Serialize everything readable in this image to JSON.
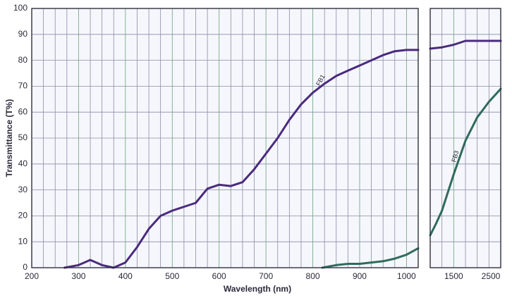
{
  "chart_data": [
    {
      "type": "line",
      "xlabel": "Wavelength (nm)",
      "ylabel": "Transmittance (T%)",
      "xlim": [
        200,
        1025
      ],
      "xticks": [
        200,
        300,
        400,
        500,
        600,
        700,
        800,
        900,
        1000
      ],
      "xgrid": [
        225,
        250,
        275,
        325,
        350,
        375,
        425,
        450,
        475,
        525,
        550,
        575,
        625,
        650,
        675,
        725,
        750,
        775,
        825,
        850,
        875,
        925,
        950,
        975
      ],
      "ylim": [
        0,
        100
      ],
      "yticks": [
        0,
        10,
        20,
        30,
        40,
        50,
        60,
        70,
        80,
        90,
        100
      ],
      "grid": true,
      "series": [
        {
          "name": "FB1",
          "color": "#4b2a7e",
          "x": [
            270,
            300,
            325,
            350,
            375,
            400,
            425,
            450,
            475,
            500,
            525,
            550,
            575,
            600,
            625,
            650,
            675,
            700,
            725,
            750,
            775,
            800,
            825,
            850,
            875,
            900,
            925,
            950,
            975,
            1000,
            1025
          ],
          "values": [
            0,
            1,
            3,
            1,
            0,
            2,
            8,
            15,
            20,
            22,
            23.5,
            25,
            30.5,
            32,
            31.5,
            33,
            38,
            44,
            50,
            57,
            63,
            67.5,
            71,
            74,
            76,
            78,
            80,
            82,
            83.5,
            84,
            84
          ]
        },
        {
          "color": "#2f6b5c",
          "x": [
            820,
            850,
            875,
            900,
            925,
            950,
            975,
            1000,
            1025
          ],
          "values": [
            0,
            1,
            1.5,
            1.5,
            2,
            2.5,
            3.5,
            5,
            7.5
          ]
        }
      ]
    },
    {
      "type": "line",
      "xlim": [
        1000,
        2500
      ],
      "xticks": [
        1500,
        2500
      ],
      "xgrid": [
        1250,
        1750,
        2000,
        2250
      ],
      "series": [
        {
          "color": "#4b2a7e",
          "x": [
            1000,
            1250,
            1500,
            1750,
            2000,
            2250,
            2500
          ],
          "values": [
            84.5,
            85,
            86,
            87.5,
            87.5,
            87.5,
            87.5
          ]
        },
        {
          "name": "FB3",
          "color": "#2f6b5c",
          "x": [
            1000,
            1125,
            1250,
            1500,
            1750,
            2000,
            2250,
            2500
          ],
          "values": [
            12.5,
            17,
            22,
            36,
            49,
            58,
            64,
            69
          ]
        }
      ]
    }
  ]
}
